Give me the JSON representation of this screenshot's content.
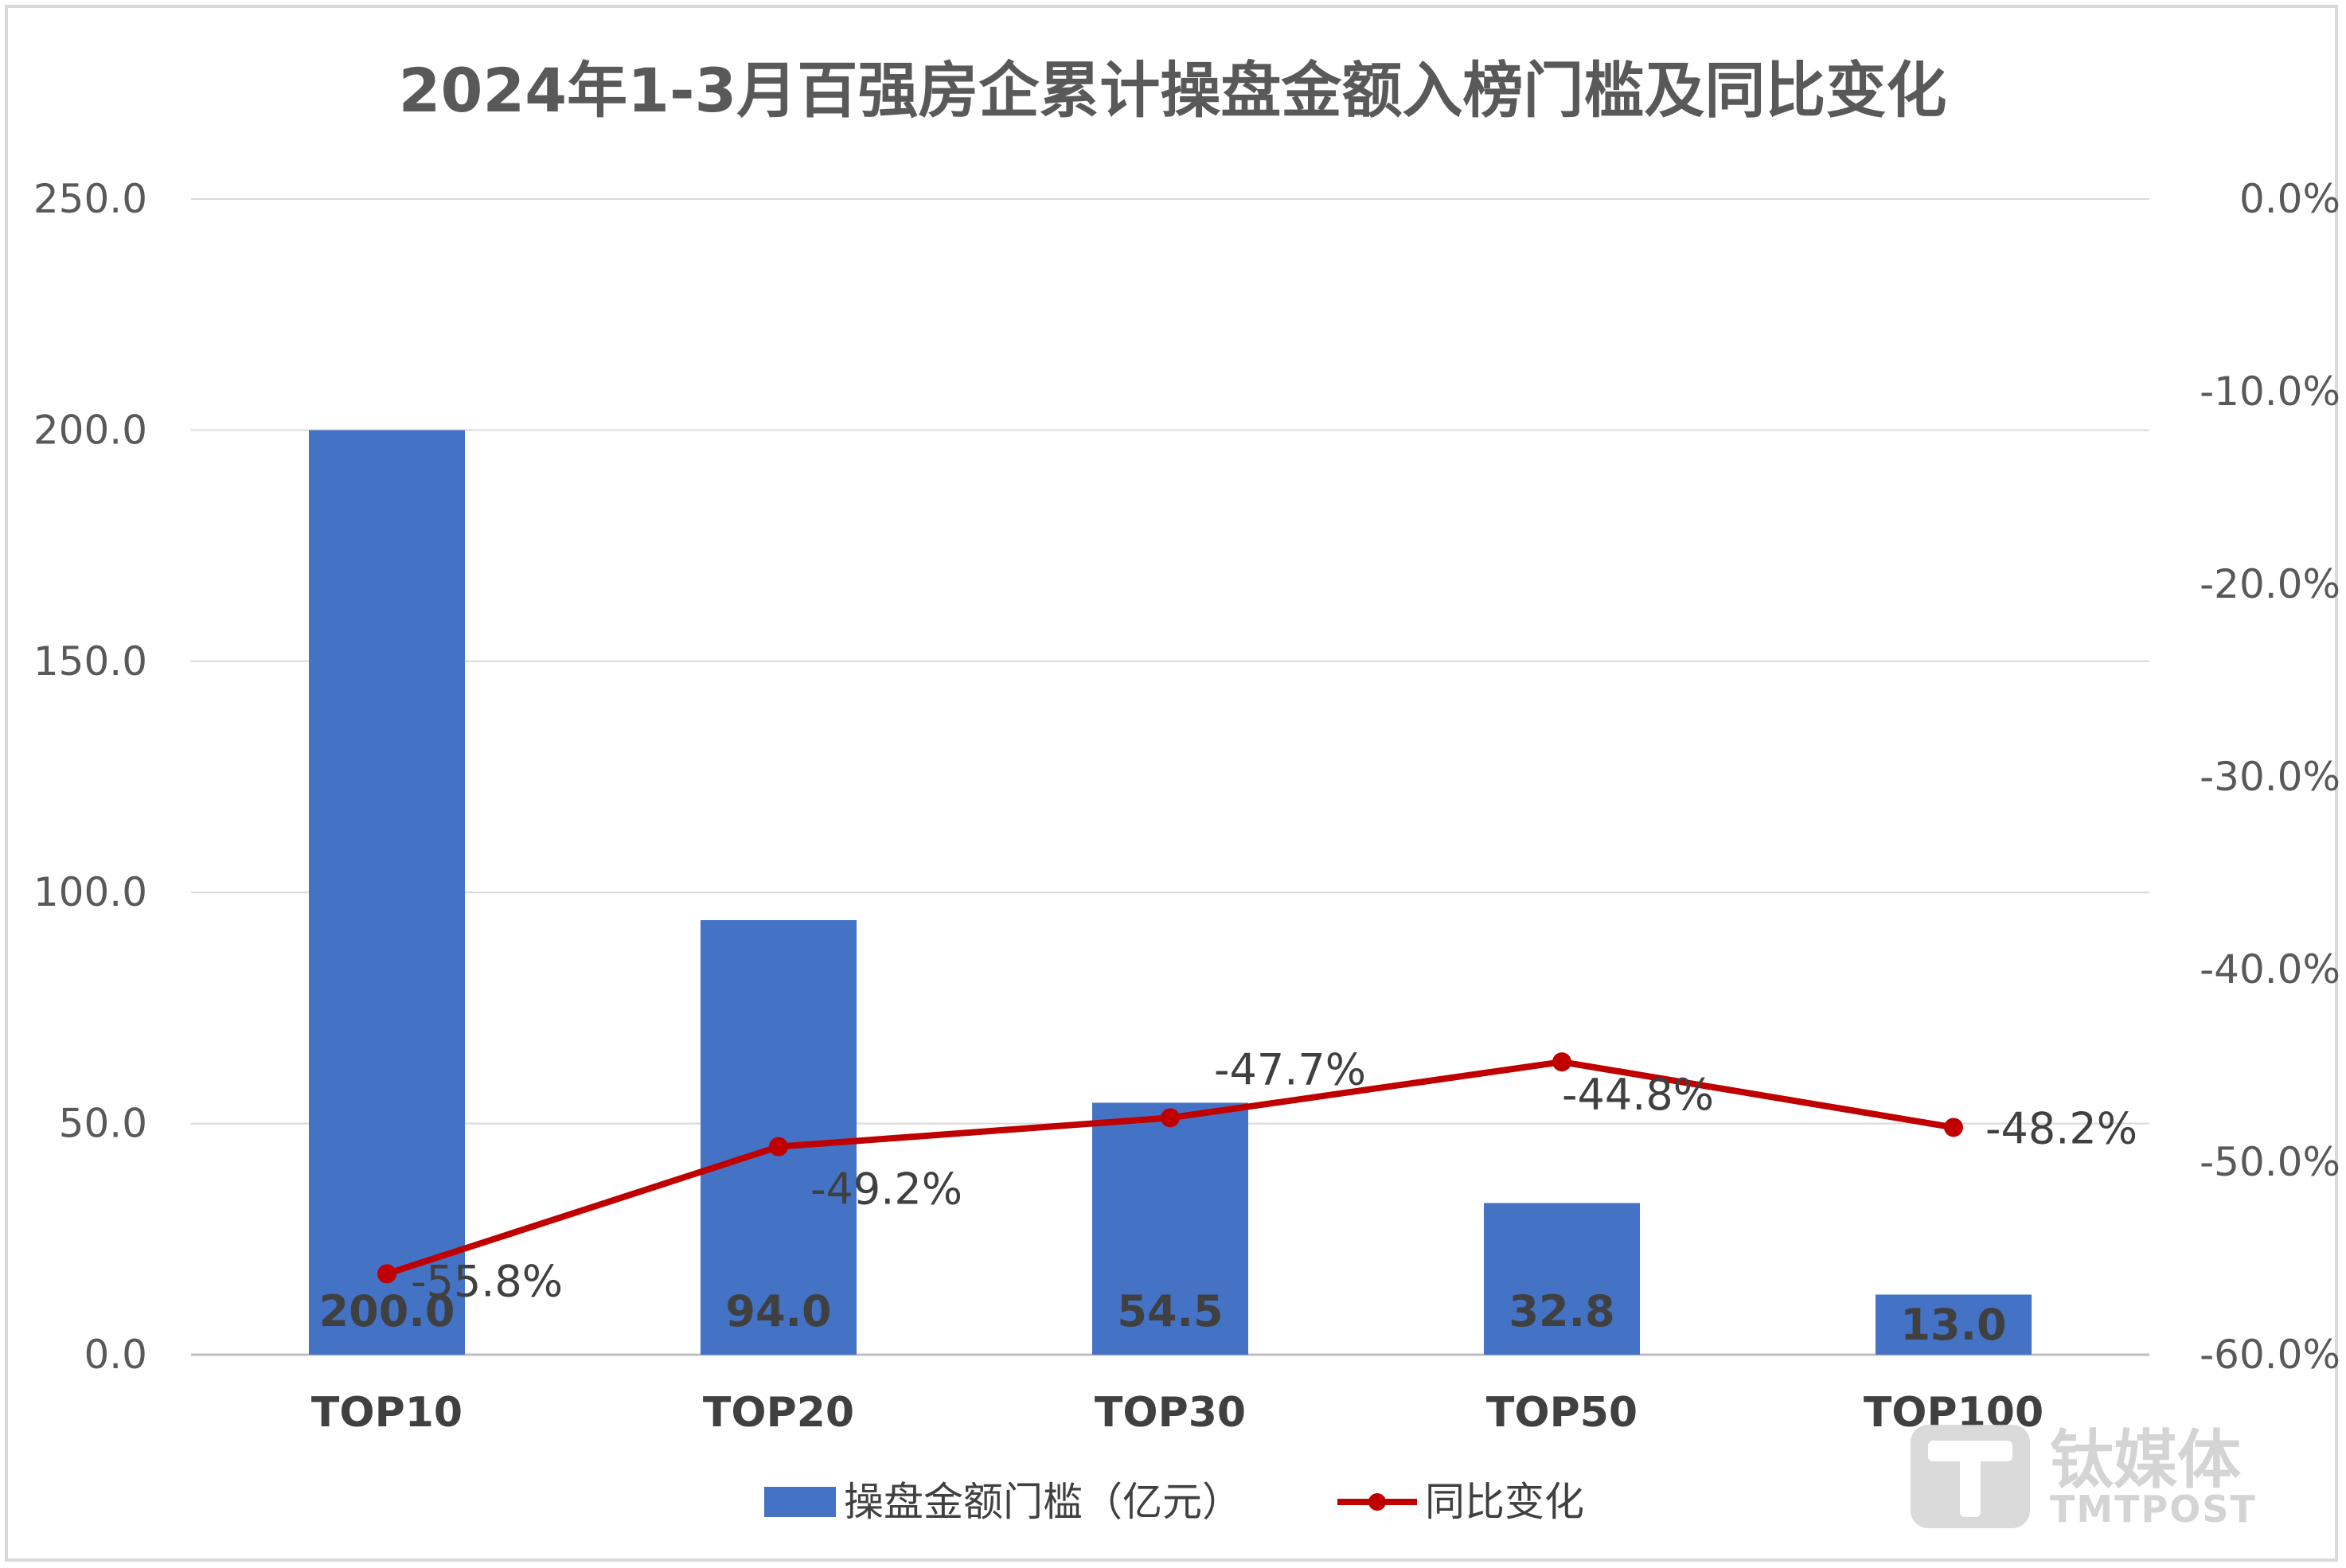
{
  "chart_data": {
    "type": "bar",
    "title": "2024年1-3月百强房企累计操盘金额入榜门槛及同比变化",
    "categories": [
      "TOP10",
      "TOP20",
      "TOP30",
      "TOP50",
      "TOP100"
    ],
    "series": [
      {
        "name": "操盘金额门槛（亿元）",
        "type": "bar",
        "axis": "left",
        "values": [
          200.0,
          94.0,
          54.5,
          32.8,
          13.0
        ],
        "labels": [
          "200.0",
          "94.0",
          "54.5",
          "32.8",
          "13.0"
        ],
        "color": "#4472c4"
      },
      {
        "name": "同比变化",
        "type": "line",
        "axis": "right",
        "values": [
          -55.8,
          -49.2,
          -47.7,
          -44.8,
          -48.2
        ],
        "labels": [
          "-55.8%",
          "-49.2%",
          "-47.7%",
          "-44.8%",
          "-48.2%"
        ],
        "color": "#c00000"
      }
    ],
    "y_left": {
      "range": [
        0,
        250
      ],
      "ticks": [
        "0.0",
        "50.0",
        "100.0",
        "150.0",
        "200.0",
        "250.0"
      ]
    },
    "y_right": {
      "range": [
        -60,
        0
      ],
      "ticks": [
        "-60.0%",
        "-50.0%",
        "-40.0%",
        "-30.0%",
        "-20.0%",
        "-10.0%",
        "0.0%"
      ]
    },
    "grid": true,
    "legend_position": "bottom"
  },
  "watermark": {
    "brand_cn": "钛媒体",
    "brand_en": "TMTPOST",
    "icon": "tmtpost-t-logo-icon"
  }
}
